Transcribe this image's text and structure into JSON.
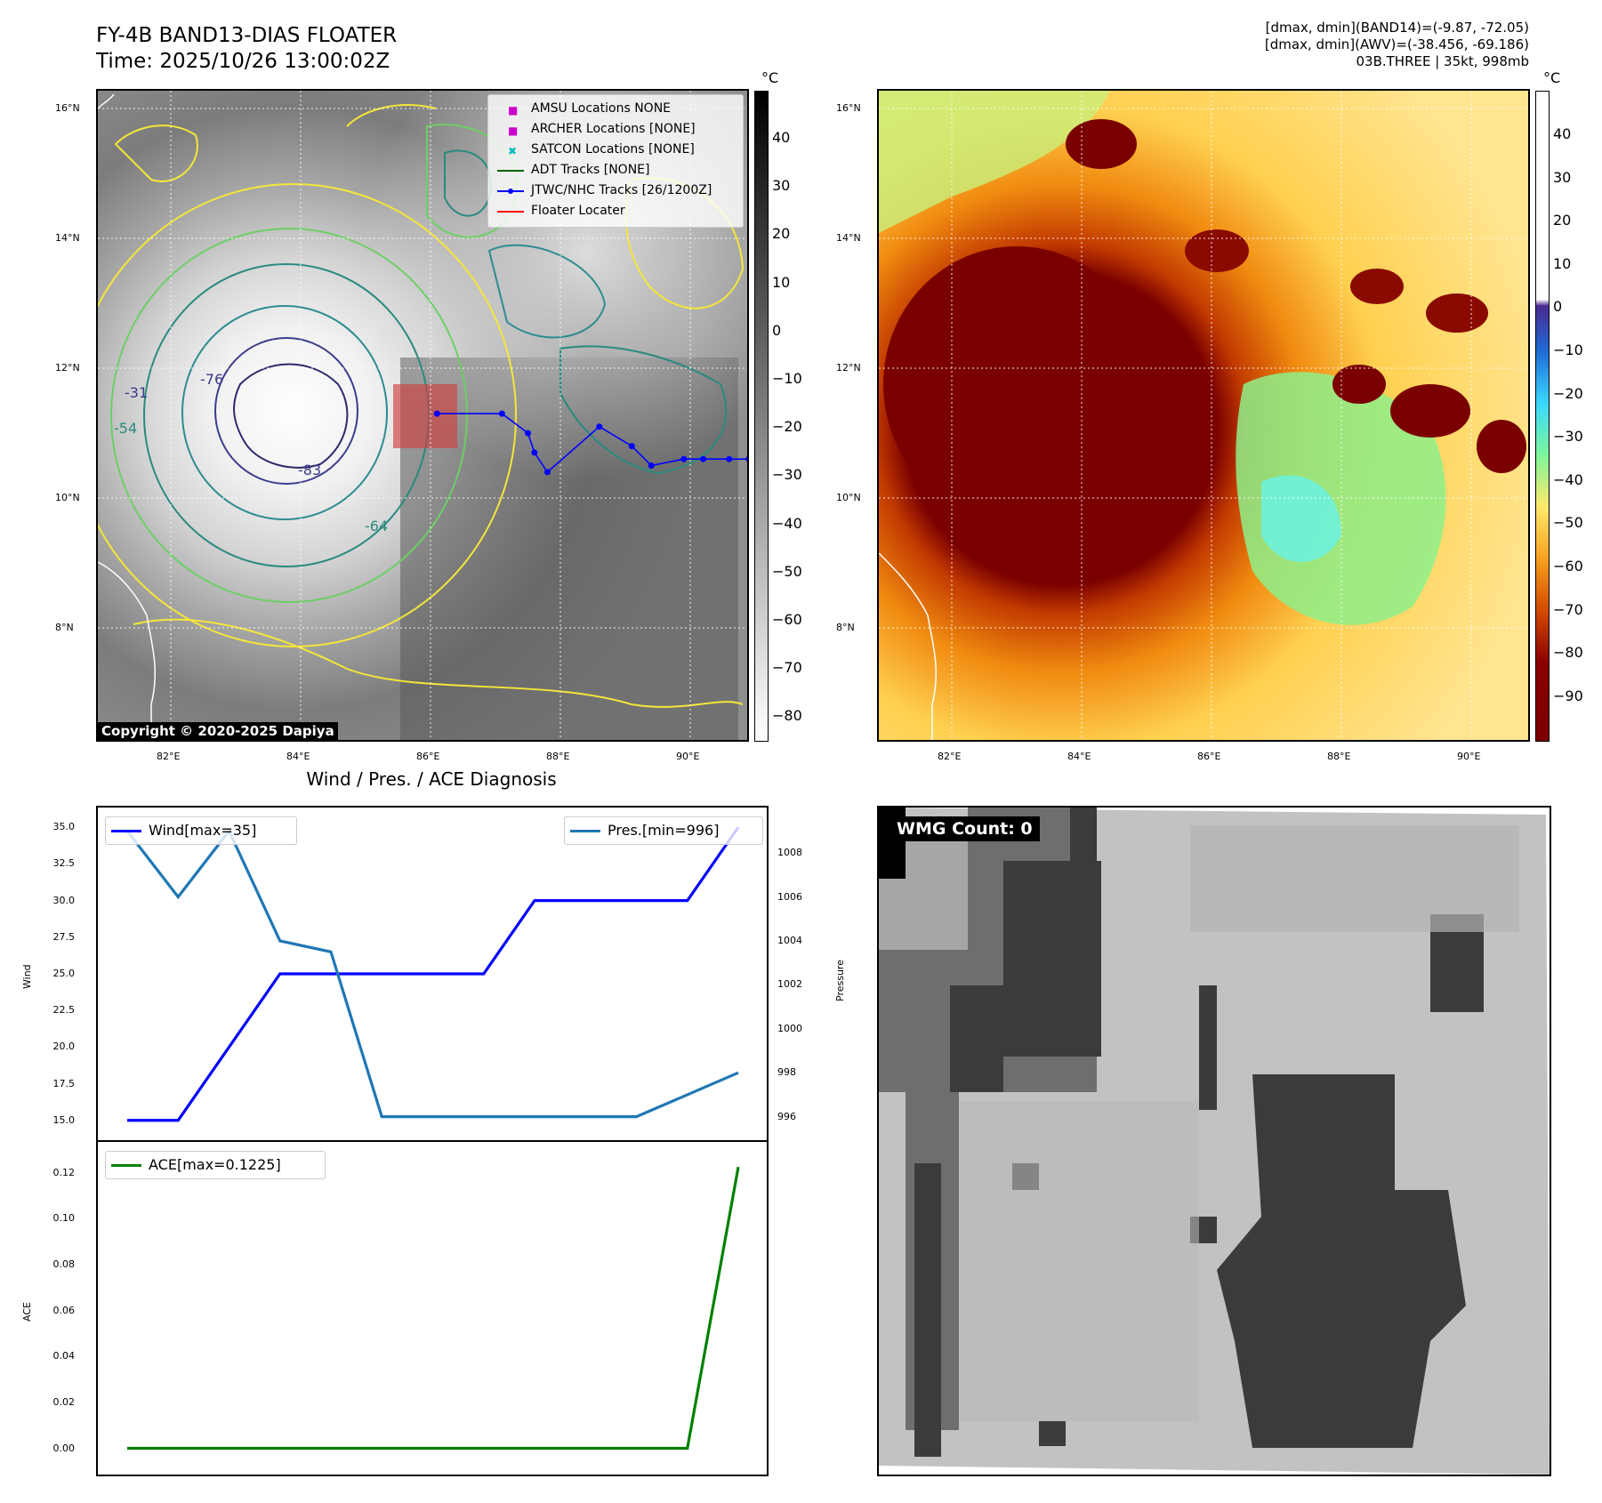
{
  "header": {
    "title_line1": "FY-4B BAND13-DIAS FLOATER",
    "title_line2": "Time: 2025/10/26 13:00:02Z",
    "info_line1": "[dmax, dmin](BAND14)=(-9.87, -72.05)",
    "info_line2": "[dmax, dmin](AWV)=(-38.456, -69.186)",
    "info_line3": "03B.THREE | 35kt, 998mb"
  },
  "map_axes": {
    "lat_labels": [
      "16°N",
      "14°N",
      "12°N",
      "10°N",
      "8°N"
    ],
    "lon_labels": [
      "82°E",
      "84°E",
      "86°E",
      "88°E",
      "90°E"
    ]
  },
  "ir_panel": {
    "cbar_unit": "°C",
    "cbar_ticks": [
      "40",
      "30",
      "20",
      "10",
      "0",
      "−10",
      "−20",
      "−30",
      "−40",
      "−50",
      "−60",
      "−70",
      "−80"
    ],
    "contour_labels": [
      "-31",
      "-54",
      "-64",
      "-76",
      "-83"
    ],
    "copyright": "Copyright © 2020-2025 Dapiya",
    "legend": [
      {
        "label": "AMSU Locations NONE",
        "color": "#cc00cc"
      },
      {
        "label": "ARCHER Locations [NONE]",
        "color": "#cc00cc"
      },
      {
        "label": "SATCON Locations [NONE]",
        "color": "#00bbbb"
      },
      {
        "label": "ADT Tracks [NONE]",
        "color": "#006400"
      },
      {
        "label": "JTWC/NHC Tracks [26/1200Z]",
        "color": "#0000ff"
      },
      {
        "label": "Floater Locater",
        "color": "#ff0000"
      }
    ],
    "track_points": [
      {
        "lon": 86.1,
        "lat": 11.3
      },
      {
        "lon": 87.1,
        "lat": 11.3
      },
      {
        "lon": 87.5,
        "lat": 11.0
      },
      {
        "lon": 87.6,
        "lat": 10.7
      },
      {
        "lon": 87.8,
        "lat": 10.4
      },
      {
        "lon": 88.6,
        "lat": 11.1
      },
      {
        "lon": 89.1,
        "lat": 10.8
      },
      {
        "lon": 89.4,
        "lat": 10.5
      },
      {
        "lon": 89.9,
        "lat": 10.6
      },
      {
        "lon": 90.2,
        "lat": 10.6
      },
      {
        "lon": 90.6,
        "lat": 10.6
      },
      {
        "lon": 90.9,
        "lat": 10.6
      }
    ]
  },
  "wv_panel": {
    "cbar_unit": "°C",
    "cbar_ticks": [
      "40",
      "30",
      "20",
      "10",
      "0",
      "−10",
      "−20",
      "−30",
      "−40",
      "−50",
      "−60",
      "−70",
      "−80",
      "−90"
    ]
  },
  "diag_panel": {
    "title": "Wind / Pres. / ACE Diagnosis",
    "wind_ylabel": "Wind",
    "pres_ylabel": "Pressure",
    "ace_ylabel": "ACE",
    "wind_legend": "Wind[max=35]",
    "pres_legend": "Pres.[min=996]",
    "ace_legend": "ACE[max=0.1225]",
    "wind_ticks": [
      "35.0",
      "32.5",
      "30.0",
      "27.5",
      "25.0",
      "22.5",
      "20.0",
      "17.5",
      "15.0"
    ],
    "pres_ticks": [
      "1008",
      "1006",
      "1004",
      "1002",
      "1000",
      "998",
      "996"
    ],
    "ace_ticks": [
      "0.12",
      "0.10",
      "0.08",
      "0.06",
      "0.04",
      "0.02",
      "0.00"
    ]
  },
  "wmg_panel": {
    "label": "WMG Count: 0"
  },
  "chart_data": [
    {
      "type": "line",
      "title": "Wind / Pres. / ACE Diagnosis",
      "x": [
        0,
        1,
        2,
        3,
        4,
        5,
        6,
        7,
        8,
        9,
        10,
        11,
        12
      ],
      "series": [
        {
          "name": "Wind[max=35]",
          "axis": "left",
          "color": "#0000ff",
          "values": [
            15,
            15,
            20,
            25,
            25,
            25,
            25,
            25,
            30,
            30,
            30,
            30,
            35
          ]
        },
        {
          "name": "Pres.[min=996]",
          "axis": "right",
          "color": "#1f77b4",
          "values": [
            1009,
            1006,
            1009,
            1004,
            1003.5,
            996,
            996,
            996,
            996,
            996,
            996,
            997,
            998
          ]
        }
      ],
      "ylim": [
        14.5,
        35.5
      ],
      "ylim_right": [
        995.5,
        1009.5
      ],
      "xlabel": "",
      "ylabel": "Wind",
      "ylabel_right": "Pressure"
    },
    {
      "type": "line",
      "x": [
        0,
        1,
        2,
        3,
        4,
        5,
        6,
        7,
        8,
        9,
        10,
        11,
        12
      ],
      "series": [
        {
          "name": "ACE[max=0.1225]",
          "color": "#008000",
          "values": [
            0,
            0,
            0,
            0,
            0,
            0,
            0,
            0,
            0,
            0,
            0,
            0,
            0.1225
          ]
        }
      ],
      "ylim": [
        -0.006,
        0.128
      ],
      "xlabel": "",
      "ylabel": "ACE"
    }
  ]
}
